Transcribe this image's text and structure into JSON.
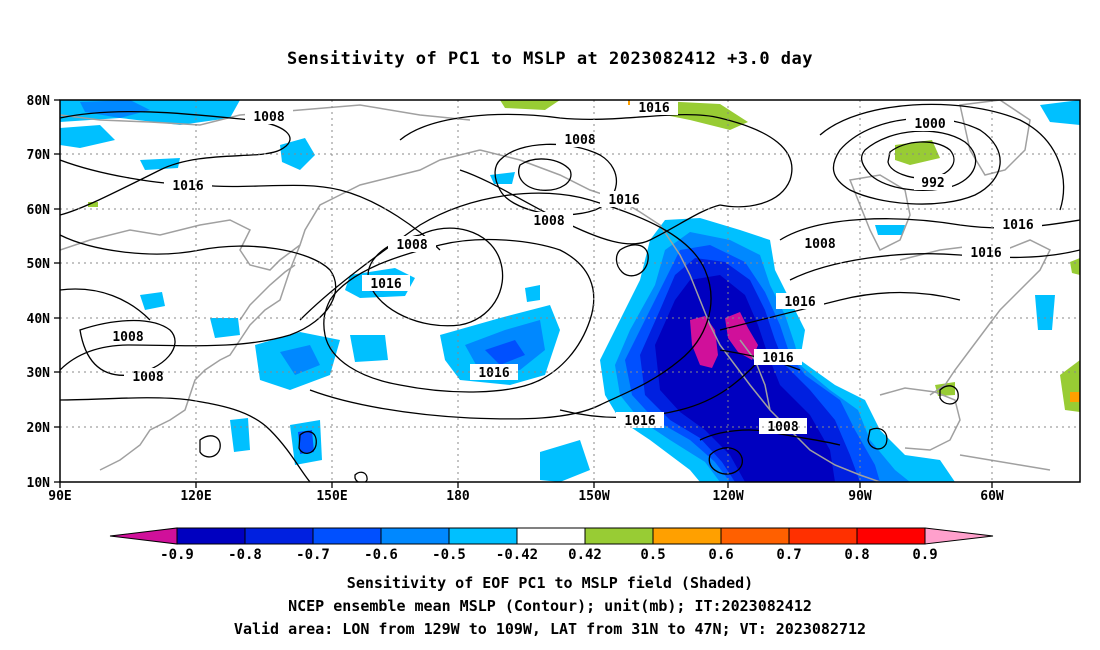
{
  "title": "Sensitivity of PC1 to MSLP at 2023082412 +3.0 day",
  "map": {
    "lat_labels": [
      "80N",
      "70N",
      "60N",
      "50N",
      "40N",
      "30N",
      "20N",
      "10N"
    ],
    "lon_labels": [
      "90E",
      "120E",
      "150E",
      "180",
      "150W",
      "120W",
      "90W",
      "60W"
    ],
    "contour_labels": [
      "1008",
      "1016",
      "1016",
      "1008",
      "1008",
      "1016",
      "1008",
      "1000",
      "992",
      "1016",
      "1008",
      "1016",
      "1016",
      "1016",
      "1008",
      "1008",
      "1016",
      "1016",
      "1008",
      "1016",
      "1016"
    ],
    "colors": {
      "coast": "#a0a0a0",
      "contour": "#000000",
      "grid": "#888888"
    }
  },
  "colorbar": {
    "labels": [
      "-0.9",
      "-0.8",
      "-0.7",
      "-0.6",
      "-0.5",
      "-0.42",
      "0.42",
      "0.5",
      "0.6",
      "0.7",
      "0.8",
      "0.9"
    ],
    "colors": [
      "#d0109a",
      "#0000c0",
      "#0020e0",
      "#0050ff",
      "#0088ff",
      "#00c0ff",
      "#ffffff",
      "#98cc34",
      "#ffa000",
      "#ff6000",
      "#ff3000",
      "#ff0000",
      "#ffa0cc"
    ]
  },
  "captions": {
    "line1": "Sensitivity of EOF PC1 to MSLP field (Shaded)",
    "line2": "NCEP ensemble mean MSLP (Contour); unit(mb); IT:2023082412",
    "line3": "Valid area: LON from 129W to 109W, LAT from 31N to 47N; VT: 2023082712"
  }
}
